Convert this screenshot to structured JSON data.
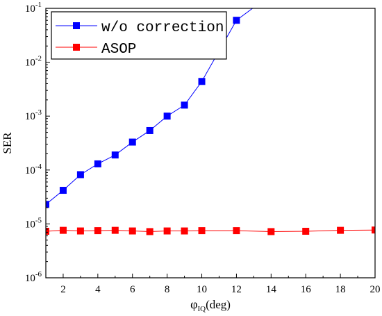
{
  "chart_data": {
    "type": "line",
    "title": "",
    "ylabel": "SER",
    "xlabel_main": "φ",
    "xlabel_sub": "IQ",
    "xlabel_unit": "(deg)",
    "xlim": [
      1,
      20
    ],
    "ylim": [
      1e-06,
      0.1
    ],
    "yscale": "log",
    "x_ticks": [
      2,
      4,
      6,
      8,
      10,
      12,
      14,
      16,
      18,
      20
    ],
    "x_tick_labels": [
      "2",
      "4",
      "6",
      "8",
      "10",
      "12",
      "14",
      "16",
      "18",
      "20"
    ],
    "y_ticks": [
      {
        "value": 1e-06,
        "mantissa": "10",
        "exponent": "-6"
      },
      {
        "value": 1e-05,
        "mantissa": "10",
        "exponent": "-5"
      },
      {
        "value": 0.0001,
        "mantissa": "10",
        "exponent": "-4"
      },
      {
        "value": 0.001,
        "mantissa": "10",
        "exponent": "-3"
      },
      {
        "value": 0.01,
        "mantissa": "10",
        "exponent": "-2"
      },
      {
        "value": 0.1,
        "mantissa": "10",
        "exponent": "-1"
      }
    ],
    "grid": false,
    "legend_position": "top-left",
    "series": [
      {
        "name": "w/o correction",
        "color": "#0000ff",
        "marker": "square",
        "x": [
          1,
          2,
          3,
          4,
          5,
          6,
          7,
          8,
          9,
          10,
          12,
          14
        ],
        "y": [
          2.3e-05,
          4.2e-05,
          8.2e-05,
          0.00013,
          0.00019,
          0.00033,
          0.00054,
          0.001,
          0.0016,
          0.0044,
          0.06,
          0.18
        ],
        "markers_at": [
          1,
          2,
          3,
          4,
          5,
          6,
          7,
          8,
          9,
          10,
          12
        ]
      },
      {
        "name": "ASOP",
        "color": "#ff0000",
        "marker": "square",
        "x": [
          1,
          2,
          3,
          4,
          5,
          6,
          7,
          8,
          9,
          10,
          12,
          14,
          16,
          18,
          20
        ],
        "y": [
          7.3e-06,
          7.6e-06,
          7.4e-06,
          7.5e-06,
          7.6e-06,
          7.4e-06,
          7.2e-06,
          7.4e-06,
          7.4e-06,
          7.5e-06,
          7.5e-06,
          7.2e-06,
          7.3e-06,
          7.6e-06,
          7.7e-06
        ],
        "markers_at": [
          1,
          2,
          3,
          4,
          5,
          6,
          7,
          8,
          9,
          10,
          12,
          14,
          16,
          18,
          20
        ]
      }
    ]
  }
}
